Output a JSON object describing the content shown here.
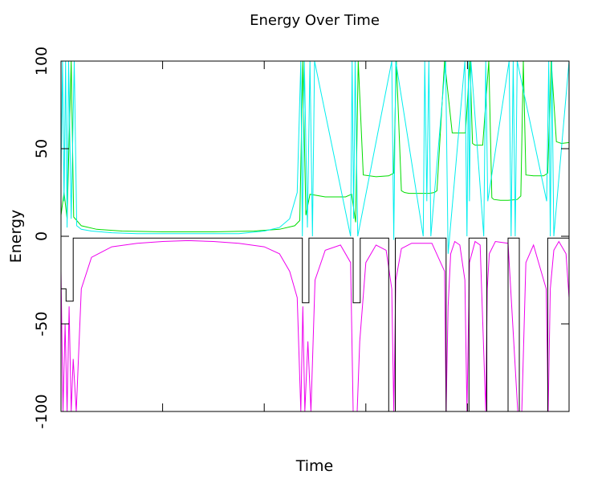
{
  "chart_data": {
    "type": "line",
    "title": "Energy Over Time",
    "xlabel": "Time",
    "ylabel": "Energy",
    "ylim": [
      -100,
      100
    ],
    "xlim": [
      0,
      100
    ],
    "yticks": [
      "100",
      "50",
      "0",
      "-50",
      "-100"
    ],
    "ytick_values": [
      100,
      50,
      0,
      -50,
      -100
    ],
    "grid": false,
    "colors": {
      "green": "#00dd00",
      "cyan": "#00eeee",
      "magenta": "#ee00ee",
      "black": "#000000",
      "purple": "#7a007a"
    },
    "series": [
      {
        "key": "green",
        "x": [
          0,
          0.6,
          1.2,
          2,
          2.5,
          4,
          7,
          12,
          20,
          30,
          38,
          43,
          46,
          47,
          47.6,
          48.2,
          49,
          52,
          56,
          57.2,
          58,
          58.5,
          59.5,
          62,
          64.5,
          65.5,
          66,
          67,
          67.6,
          68.5,
          70,
          72.5,
          73.5,
          74,
          75.5,
          77,
          79.6,
          80.5,
          81,
          81.5,
          83,
          84.2,
          84.8,
          85.2,
          86.5,
          88,
          89.8,
          90.5,
          91,
          91.5,
          93,
          95,
          95.8,
          96.5,
          97.5,
          98.5,
          100
        ],
        "y": [
          12,
          25,
          10,
          100,
          11,
          6,
          4,
          3,
          2.5,
          2.5,
          3,
          4,
          6,
          9,
          100,
          12,
          24,
          22.5,
          22.5,
          24,
          8,
          100,
          35,
          34,
          34.5,
          36,
          100,
          26,
          25,
          24.5,
          24.5,
          24.5,
          25,
          26,
          100,
          59,
          59,
          100,
          53,
          52,
          52,
          100,
          22,
          21,
          20.5,
          20.5,
          21,
          23,
          100,
          35,
          34.5,
          34.5,
          36,
          100,
          54,
          53,
          53.5
        ]
      },
      {
        "key": "cyan",
        "x": [
          0,
          0.3,
          0.6,
          0.9,
          1.2,
          1.5,
          2.0,
          2.6,
          3.1,
          4,
          6,
          10,
          15,
          20,
          25,
          30,
          35,
          40,
          43,
          45,
          46.5,
          47.2,
          47.5,
          47.9,
          48.5,
          49,
          49.5,
          49.9,
          57,
          57.3,
          57.6,
          57.9,
          58.4,
          65.1,
          65.5,
          65.9,
          71.3,
          71.6,
          72.0,
          72.4,
          72.8,
          75.7,
          76.2,
          79.5,
          79.9,
          80.2,
          80.4,
          80.7,
          83.2,
          83.6,
          84.0,
          88.2,
          88.6,
          89.0,
          89.4,
          89.8,
          95.6,
          96.0,
          96.3,
          96.6,
          97.0,
          100
        ],
        "y": [
          35,
          100,
          20,
          100,
          5,
          100,
          10,
          100,
          6,
          4,
          3,
          2,
          1.5,
          1.5,
          1.5,
          1.5,
          1.5,
          3,
          5,
          10,
          25,
          100,
          0,
          100,
          5,
          100,
          0,
          100,
          0,
          100,
          10,
          100,
          0,
          100,
          -2,
          100,
          0,
          100,
          20,
          100,
          0,
          100,
          -10,
          100,
          0,
          100,
          20,
          100,
          0,
          100,
          20,
          100,
          0,
          100,
          0,
          100,
          20,
          100,
          0,
          100,
          0,
          100
        ]
      },
      {
        "key": "magenta",
        "x": [
          0,
          0.4,
          0.8,
          1.2,
          1.6,
          2.0,
          2.4,
          3.0,
          4,
          6,
          10,
          15,
          20,
          25,
          30,
          35,
          40,
          43,
          45,
          46.5,
          47.2,
          47.6,
          48,
          48.6,
          49.2,
          50,
          52,
          55,
          57,
          57.5,
          57.9,
          58.3,
          58.8,
          60,
          62,
          64,
          65.1,
          65.5,
          65.9,
          67,
          69,
          73,
          75.5,
          75.8,
          76.2,
          76.7,
          77.5,
          78.5,
          79.5,
          79.9,
          80.4,
          81.5,
          82.5,
          83.6,
          83.9,
          84.3,
          85.5,
          88,
          89.9,
          90.3,
          90.7,
          91.5,
          93,
          95.5,
          95.9,
          96.3,
          97.0,
          98,
          99.4,
          100
        ],
        "y": [
          -20,
          -100,
          -50,
          -100,
          -40,
          -100,
          -70,
          -100,
          -30,
          -12,
          -6,
          -4,
          -3,
          -2.5,
          -3,
          -4,
          -6,
          -10,
          -20,
          -35,
          -100,
          -40,
          -100,
          -60,
          -100,
          -25,
          -8,
          -5,
          -15,
          -100,
          -100,
          -100,
          -60,
          -15,
          -5,
          -8,
          -30,
          -100,
          -25,
          -7,
          -4,
          -4,
          -20,
          -100,
          -40,
          -10,
          -3,
          -5,
          -25,
          -100,
          -15,
          -3,
          -5,
          -100,
          -30,
          -10,
          -3,
          -4,
          -100,
          -100,
          -100,
          -15,
          -5,
          -30,
          -100,
          -30,
          -8,
          -3,
          -10,
          -35
        ]
      },
      {
        "key": "black",
        "x": [
          0,
          1.0,
          1.0,
          2.4,
          2.4,
          47.5,
          47.5,
          48.8,
          48.8,
          57.5,
          57.5,
          58.9,
          58.9,
          64.5,
          64.5,
          65.8,
          65.8,
          75.8,
          75.8,
          80.3,
          80.3,
          83.8,
          83.8,
          88.0,
          88.0,
          90.2,
          90.2,
          95.8,
          95.8,
          100
        ],
        "y": [
          -30,
          -30,
          -37,
          -37,
          -1,
          -1,
          -38,
          -38,
          -1,
          -1,
          -38,
          -38,
          -1,
          -1,
          -100,
          -100,
          -1,
          -1,
          -100,
          -100,
          -1,
          -1,
          -100,
          -100,
          -1,
          -1,
          -100,
          -100,
          -1,
          -1
        ]
      }
    ]
  }
}
